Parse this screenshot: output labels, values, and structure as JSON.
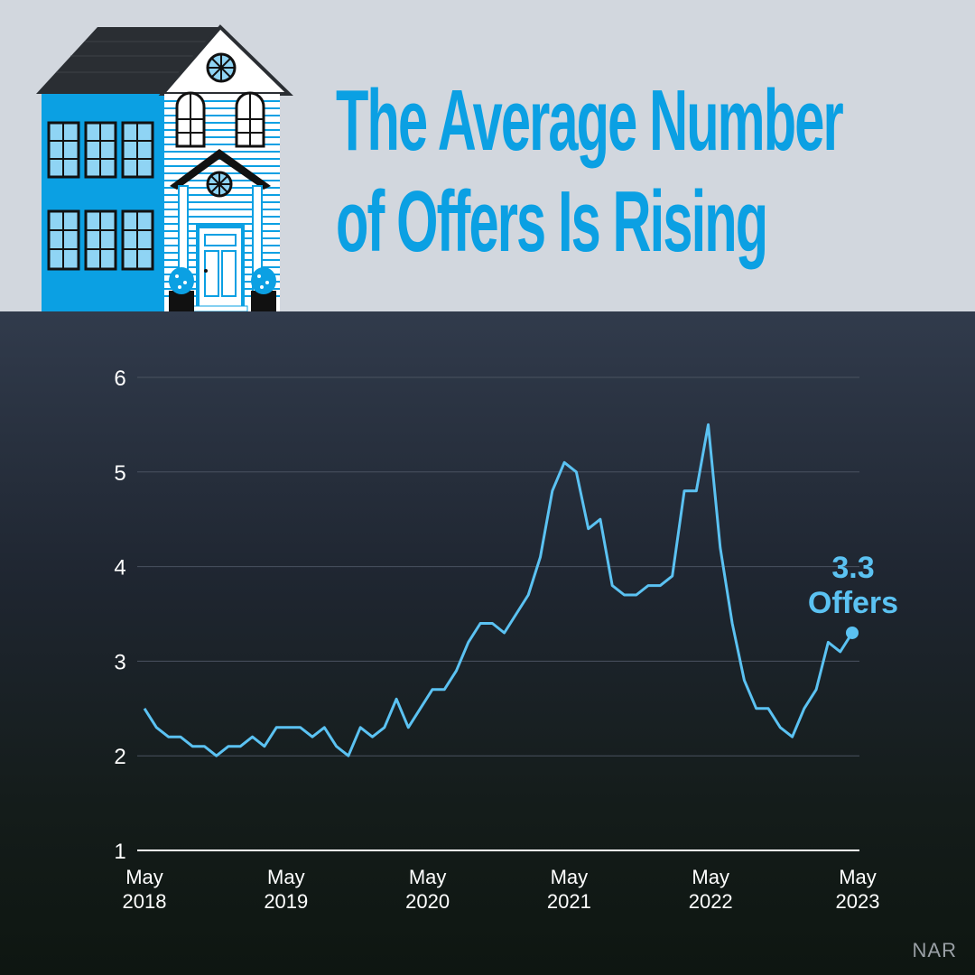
{
  "title": {
    "line1": "The Average Number",
    "line2": "of Offers Is Rising"
  },
  "source": "NAR",
  "colors": {
    "title": "#0ba0e3",
    "line": "#5bc2f2",
    "axis_text": "#ffffff",
    "grid": "#4a5260",
    "house_blue": "#0ba0e3"
  },
  "chart_data": {
    "type": "line",
    "title": "The Average Number of Offers Is Rising",
    "ylim": [
      1,
      6
    ],
    "yticks": [
      "1",
      "2",
      "3",
      "4",
      "5",
      "6"
    ],
    "x_tick_labels": [
      {
        "line1": "May",
        "line2": "2018"
      },
      {
        "line1": "May",
        "line2": "2019"
      },
      {
        "line1": "May",
        "line2": "2020"
      },
      {
        "line1": "May",
        "line2": "2021"
      },
      {
        "line1": "May",
        "line2": "2022"
      },
      {
        "line1": "May",
        "line2": "2023"
      }
    ],
    "x_start": "2018-05",
    "x_end": "2023-05",
    "grid": true,
    "series": [
      {
        "values": [
          2.5,
          2.3,
          2.2,
          2.2,
          2.1,
          2.1,
          2.0,
          2.1,
          2.1,
          2.2,
          2.1,
          2.3,
          2.3,
          2.3,
          2.2,
          2.3,
          2.1,
          2.0,
          2.3,
          2.2,
          2.3,
          2.6,
          2.3,
          2.5,
          2.7,
          2.7,
          2.9,
          3.2,
          3.4,
          3.4,
          3.3,
          3.5,
          3.7,
          4.1,
          4.8,
          5.1,
          5.0,
          4.4,
          4.5,
          3.8,
          3.7,
          3.7,
          3.8,
          3.8,
          3.9,
          4.8,
          4.8,
          5.5,
          4.2,
          3.4,
          2.8,
          2.5,
          2.5,
          2.3,
          2.2,
          2.5,
          2.7,
          3.2,
          3.1,
          3.3
        ]
      }
    ],
    "annotation": {
      "value": "3.3",
      "label": "Offers"
    }
  }
}
